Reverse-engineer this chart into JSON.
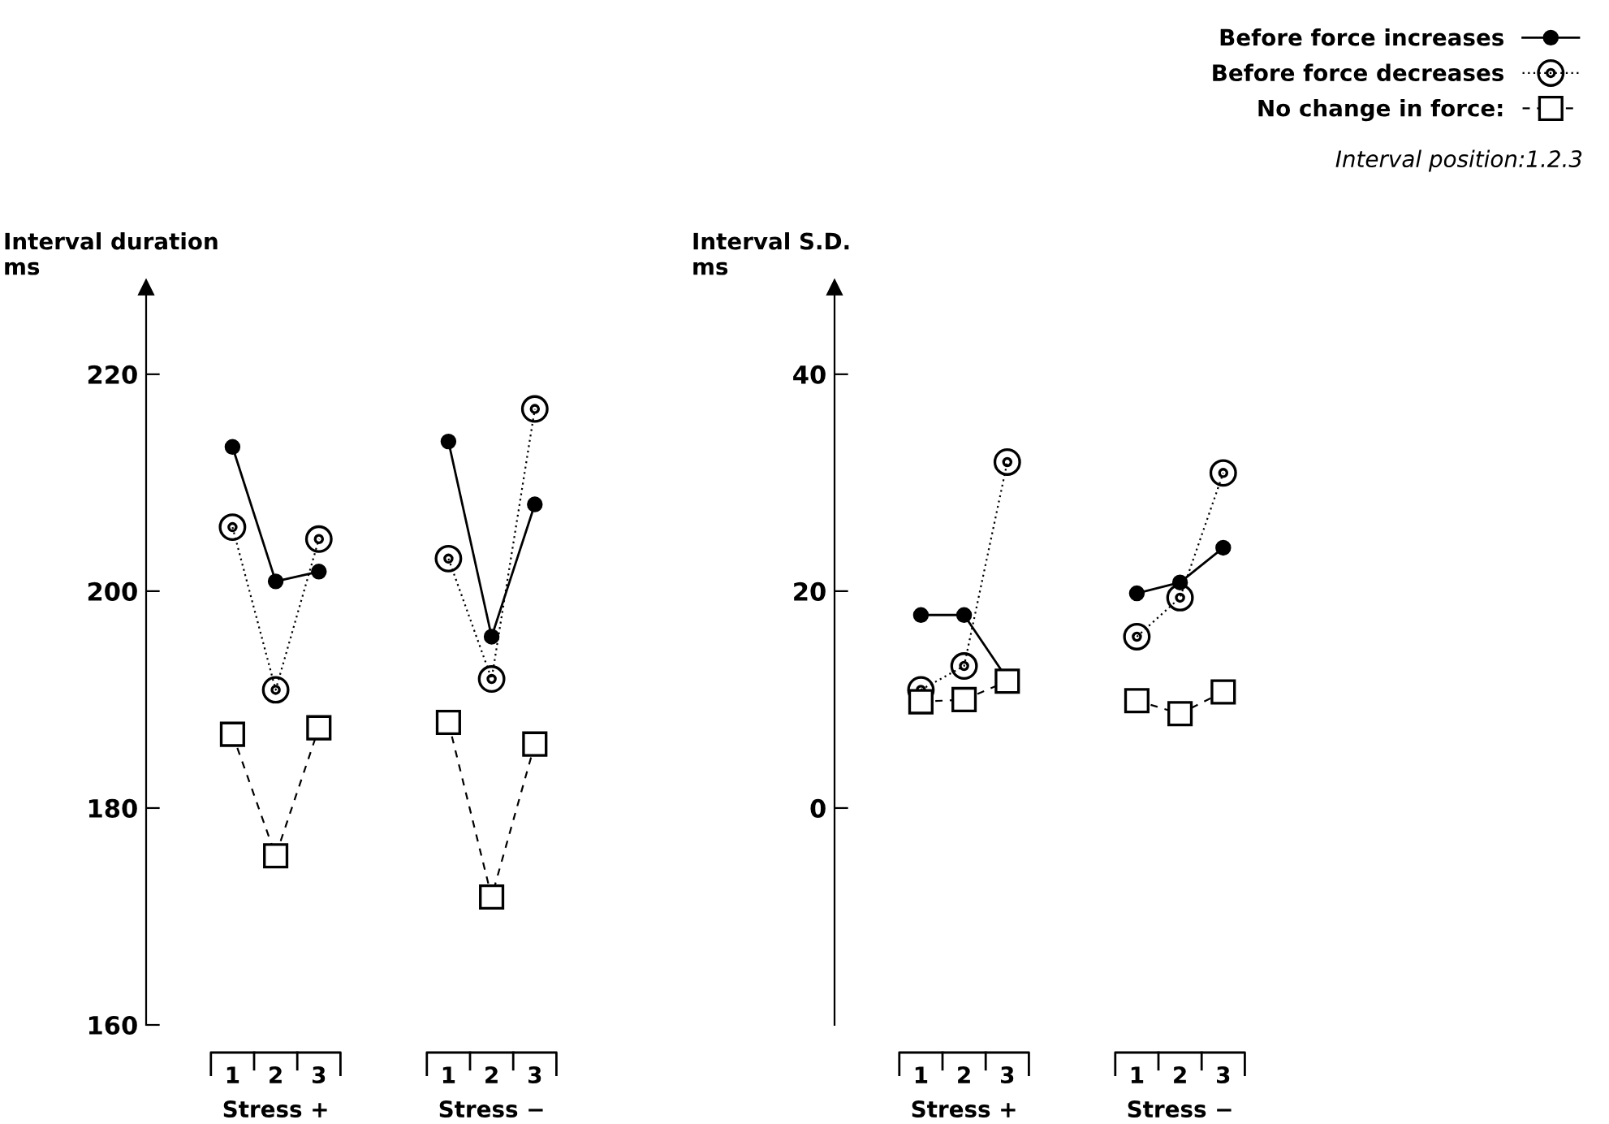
{
  "chart_data": [
    {
      "type": "line",
      "ylabel": "Interval duration\nms",
      "categories": [
        "1",
        "2",
        "3",
        null,
        null,
        "1",
        "2",
        "3"
      ],
      "ylim": [
        160,
        228
      ],
      "yticks": [
        160,
        180,
        200,
        220
      ],
      "grid": false,
      "series": [
        {
          "color": "#000000",
          "marker": "circle",
          "line_style": "solid",
          "values": [
            213.3,
            200.9,
            201.8,
            null,
            null,
            213.8,
            195.8,
            208.0
          ]
        },
        {
          "color": "#000000",
          "marker": "circle",
          "line_style": "dotted",
          "values": [
            205.9,
            190.9,
            204.8,
            null,
            null,
            203.0,
            191.9,
            216.8
          ]
        },
        {
          "color": "#000000",
          "marker": "square",
          "line_style": "dashed",
          "values": [
            186.8,
            175.6,
            187.4,
            null,
            null,
            187.9,
            171.8,
            185.9
          ]
        }
      ],
      "annotations": [
        "Stress +",
        "Stress −"
      ]
    },
    {
      "type": "line",
      "ylabel": "Interval S.D.\nms",
      "categories": [
        "1",
        "2",
        "3",
        null,
        null,
        "1",
        "2",
        "3"
      ],
      "ylim": [
        -20,
        48
      ],
      "yticks": [
        0,
        20,
        40
      ],
      "grid": false,
      "legend": "top right",
      "series": [
        {
          "name": "Before force increases",
          "color": "#000000",
          "marker": "circle",
          "line_style": "solid",
          "values": [
            17.8,
            17.8,
            11.9,
            null,
            null,
            19.8,
            20.8,
            24.0
          ]
        },
        {
          "name": "Before force decreases",
          "color": "#000000",
          "marker": "circle",
          "line_style": "dotted",
          "values": [
            10.9,
            13.1,
            31.9,
            null,
            null,
            15.8,
            19.4,
            30.9
          ]
        },
        {
          "name": "No change in force:",
          "color": "#000000",
          "marker": "square",
          "line_style": "dashed",
          "values": [
            9.8,
            10.0,
            11.7,
            null,
            null,
            9.9,
            8.7,
            10.7
          ]
        }
      ],
      "annotations": [
        "Stress +",
        "Stress −",
        "Interval position:1.2.3"
      ]
    }
  ]
}
